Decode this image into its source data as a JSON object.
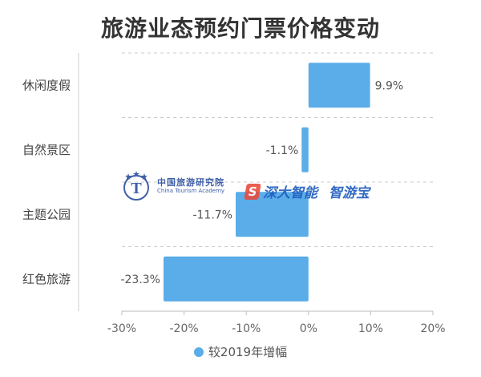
{
  "chart_data": {
    "type": "bar",
    "orientation": "horizontal",
    "title": "旅游业态预约门票价格变动",
    "categories": [
      "休闲度假",
      "自然景区",
      "主题公园",
      "红色旅游"
    ],
    "series": [
      {
        "name": "较2019年增幅",
        "values": [
          9.9,
          -1.1,
          -11.7,
          -23.3
        ]
      }
    ],
    "value_labels": [
      "9.9%",
      "-1.1%",
      "-11.7%",
      "-23.3%"
    ],
    "xlim": [
      -30,
      20
    ],
    "x_ticks": [
      -30,
      -20,
      -10,
      0,
      10,
      20
    ],
    "x_tick_labels": [
      "-30%",
      "-20%",
      "-10%",
      "0%",
      "10%",
      "20%"
    ],
    "xlabel": "",
    "ylabel": "",
    "grid": true,
    "legend_position": "bottom",
    "bar_color": "#5aade8"
  },
  "watermark": {
    "org_cn": "中国旅游研究院",
    "org_en": "China Tourism Academy",
    "brand1": "深大智能",
    "brand2": "智游宝"
  }
}
